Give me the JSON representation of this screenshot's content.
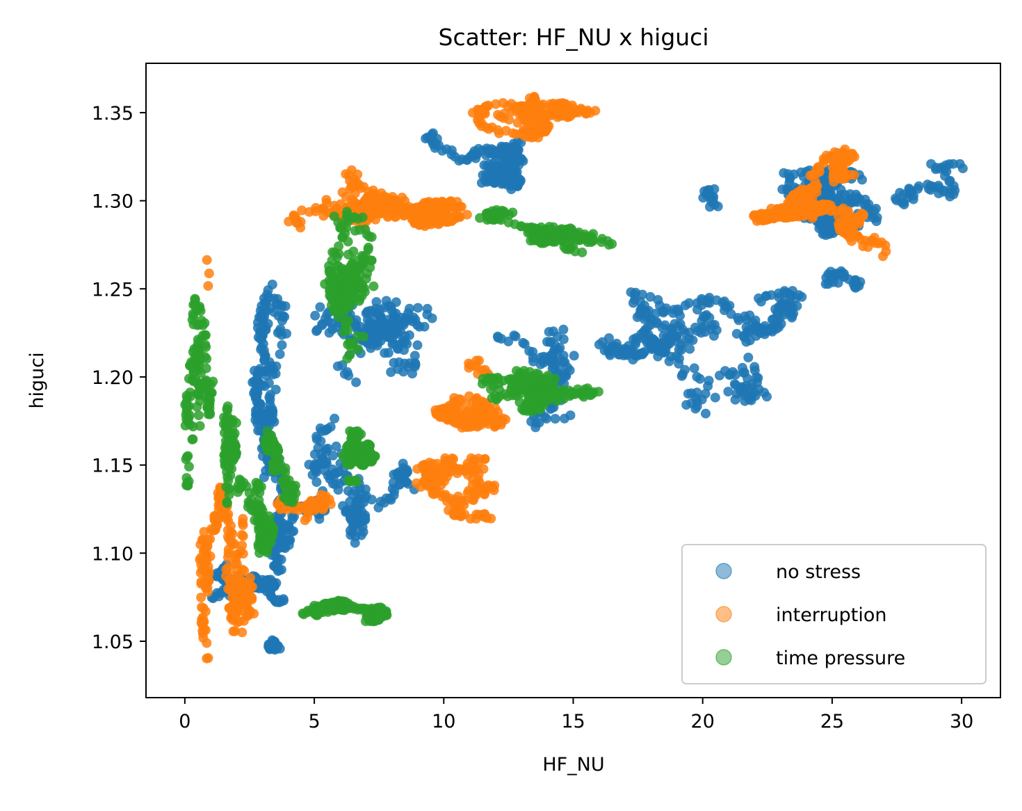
{
  "chart_data": {
    "type": "scatter",
    "title": "Scatter: HF_NU x higuci",
    "xlabel": "HF_NU",
    "ylabel": "higuci",
    "xlim": [
      -1.5,
      31.5
    ],
    "ylim": [
      1.018,
      1.378
    ],
    "xticks": [
      0,
      5,
      10,
      15,
      20,
      25,
      30
    ],
    "xtick_labels": [
      "0",
      "5",
      "10",
      "15",
      "20",
      "25",
      "30"
    ],
    "yticks": [
      1.05,
      1.1,
      1.15,
      1.2,
      1.25,
      1.3,
      1.35
    ],
    "ytick_labels": [
      "1.05",
      "1.10",
      "1.15",
      "1.20",
      "1.25",
      "1.30",
      "1.35"
    ],
    "grid": false,
    "legend_position": "lower-right",
    "series": [
      {
        "name": "no stress",
        "color": "#1f77b4",
        "regions": [
          {
            "x": [
              0.2,
              4.5
            ],
            "y": [
              1.05,
              1.32
            ]
          },
          {
            "x": [
              2.0,
              9.0
            ],
            "y": [
              1.05,
              1.2
            ]
          },
          {
            "x": [
              5.0,
              17.0
            ],
            "y": [
              1.17,
              1.32
            ]
          },
          {
            "x": [
              9.0,
              16.0
            ],
            "y": [
              1.3,
              1.36
            ]
          },
          {
            "x": [
              12.0,
              22.5
            ],
            "y": [
              1.15,
              1.3
            ]
          },
          {
            "x": [
              16.0,
              24.0
            ],
            "y": [
              1.17,
              1.25
            ]
          },
          {
            "x": [
              20.0,
              30.2
            ],
            "y": [
              1.26,
              1.33
            ]
          },
          {
            "x": [
              22.0,
              28.5
            ],
            "y": [
              1.25,
              1.31
            ]
          },
          {
            "x": [
              1.0,
              4.5
            ],
            "y": [
              1.045,
              1.095
            ]
          }
        ]
      },
      {
        "name": "interruption",
        "color": "#ff7f0e",
        "regions": [
          {
            "x": [
              0.2,
              3.0
            ],
            "y": [
              1.04,
              1.27
            ]
          },
          {
            "x": [
              3.5,
              12.0
            ],
            "y": [
              1.09,
              1.16
            ]
          },
          {
            "x": [
              5.0,
              13.0
            ],
            "y": [
              1.15,
              1.21
            ]
          },
          {
            "x": [
              4.0,
              12.0
            ],
            "y": [
              1.24,
              1.33
            ]
          },
          {
            "x": [
              8.0,
              16.5
            ],
            "y": [
              1.31,
              1.36
            ]
          },
          {
            "x": [
              7.5,
              15.5
            ],
            "y": [
              1.27,
              1.3
            ]
          },
          {
            "x": [
              23.0,
              28.0
            ],
            "y": [
              1.25,
              1.34
            ]
          },
          {
            "x": [
              19.0,
              26.0
            ],
            "y": [
              1.28,
              1.3
            ]
          }
        ]
      },
      {
        "name": "time pressure",
        "color": "#2ca02c",
        "regions": [
          {
            "x": [
              0.0,
              2.0
            ],
            "y": [
              1.035,
              1.25
            ]
          },
          {
            "x": [
              1.0,
              7.5
            ],
            "y": [
              1.13,
              1.32
            ]
          },
          {
            "x": [
              2.0,
              5.0
            ],
            "y": [
              1.1,
              1.22
            ]
          },
          {
            "x": [
              5.5,
              17.5
            ],
            "y": [
              1.18,
              1.23
            ]
          },
          {
            "x": [
              8.0,
              16.5
            ],
            "y": [
              1.27,
              1.31
            ]
          },
          {
            "x": [
              4.5,
              10.0
            ],
            "y": [
              1.06,
              1.09
            ]
          },
          {
            "x": [
              5.0,
              8.0
            ],
            "y": [
              1.14,
              1.17
            ]
          }
        ]
      }
    ]
  }
}
